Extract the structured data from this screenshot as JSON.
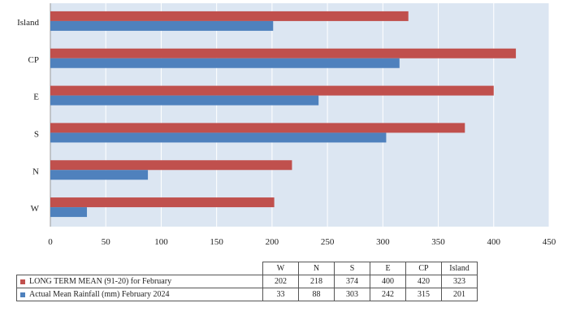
{
  "chart_data": {
    "type": "bar",
    "orientation": "horizontal",
    "title": "",
    "categories": [
      "W",
      "N",
      "S",
      "E",
      "CP",
      "Island"
    ],
    "series": [
      {
        "name": "LONG TERM MEAN (91-20)  for  February",
        "color": "#c0504d",
        "values": [
          202,
          218,
          374,
          400,
          420,
          323
        ]
      },
      {
        "name": "Actual Mean Rainfall (mm) February 2024",
        "color": "#4f81bd",
        "values": [
          33,
          88,
          303,
          242,
          315,
          201
        ]
      }
    ],
    "xlim": [
      0,
      450
    ],
    "x_ticks": [
      "0",
      "50",
      "100",
      "150",
      "200",
      "250",
      "300",
      "350",
      "400",
      "450"
    ],
    "grid": true,
    "plot_background": "#dce6f2",
    "legend": "data table below chart"
  }
}
